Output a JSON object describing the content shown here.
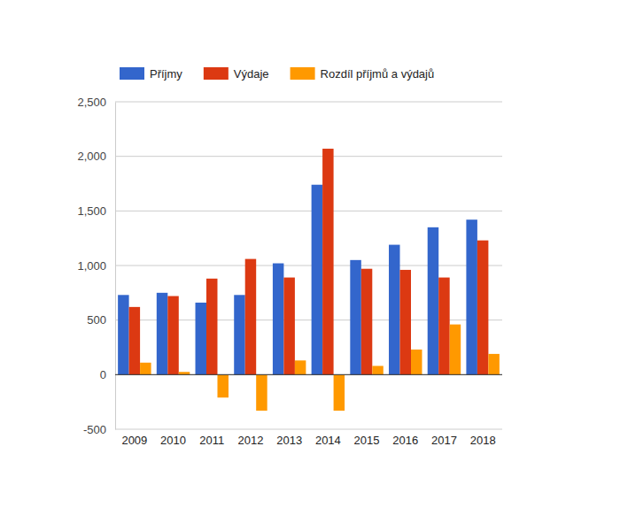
{
  "chart_data": {
    "type": "bar",
    "categories": [
      "2009",
      "2010",
      "2011",
      "2012",
      "2013",
      "2014",
      "2015",
      "2016",
      "2017",
      "2018"
    ],
    "series": [
      {
        "name": "Příjmy",
        "color": "#3366cc",
        "values": [
          730,
          750,
          660,
          730,
          1020,
          1740,
          1050,
          1190,
          1350,
          1420
        ]
      },
      {
        "name": "Výdaje",
        "color": "#dc3912",
        "values": [
          620,
          720,
          880,
          1060,
          890,
          2070,
          970,
          960,
          890,
          1230
        ]
      },
      {
        "name": "Rozdíl příjmů a výdajů",
        "color": "#ff9900",
        "values": [
          110,
          25,
          -210,
          -330,
          130,
          -330,
          80,
          230,
          460,
          190
        ]
      }
    ],
    "ylim": [
      -500,
      2500
    ],
    "yticks": [
      -500,
      0,
      500,
      {
        "value": 1000,
        "label": "1,000"
      },
      {
        "value": 1500,
        "label": "1,500"
      },
      {
        "value": 2000,
        "label": "2,000"
      },
      {
        "value": 2500,
        "label": "2,500"
      }
    ],
    "grid": true,
    "legend": "top"
  }
}
